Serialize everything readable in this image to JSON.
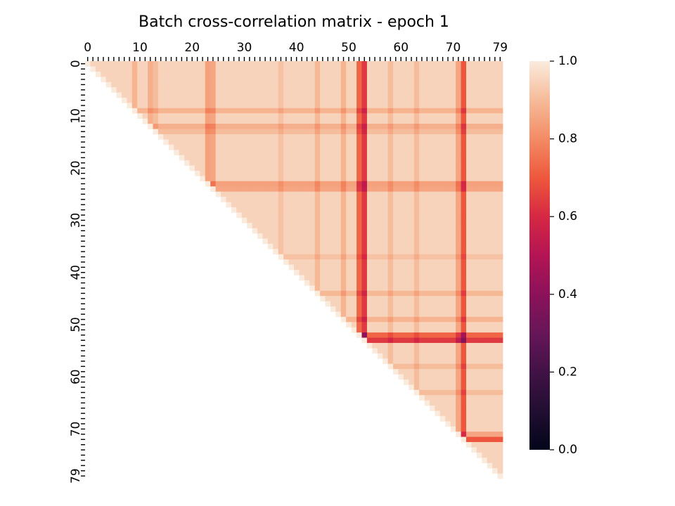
{
  "chart_data": {
    "type": "heatmap",
    "title": "Batch cross-correlation matrix - epoch 1",
    "n": 80,
    "mask": "upper-triangle",
    "x_tick_labels": [
      "0",
      "10",
      "20",
      "30",
      "40",
      "50",
      "60",
      "70",
      "79"
    ],
    "y_tick_labels": [
      "0",
      "10",
      "20",
      "30",
      "40",
      "50",
      "60",
      "70",
      "79"
    ],
    "tick_values": [
      0,
      10,
      20,
      30,
      40,
      50,
      60,
      70,
      79
    ],
    "vmin": 0.0,
    "vmax": 1.0,
    "colorbar_ticks": [
      "0.0",
      "0.2",
      "0.4",
      "0.6",
      "0.8",
      "1.0"
    ],
    "colorbar_values": [
      0.0,
      0.2,
      0.4,
      0.6,
      0.8,
      1.0
    ],
    "colormap": "rocket",
    "base_value": 0.975,
    "low_correlation_indices": [
      {
        "index": 53,
        "value": 0.66
      },
      {
        "index": 72,
        "value": 0.72
      },
      {
        "index": 52,
        "value": 0.75
      },
      {
        "index": 24,
        "value": 0.88
      },
      {
        "index": 23,
        "value": 0.87
      },
      {
        "index": 12,
        "value": 0.9
      },
      {
        "index": 9,
        "value": 0.91
      },
      {
        "index": 44,
        "value": 0.92
      },
      {
        "index": 49,
        "value": 0.91
      },
      {
        "index": 71,
        "value": 0.88
      },
      {
        "index": 13,
        "value": 0.93
      },
      {
        "index": 37,
        "value": 0.94
      },
      {
        "index": 58,
        "value": 0.93
      },
      {
        "index": 63,
        "value": 0.93
      }
    ]
  }
}
